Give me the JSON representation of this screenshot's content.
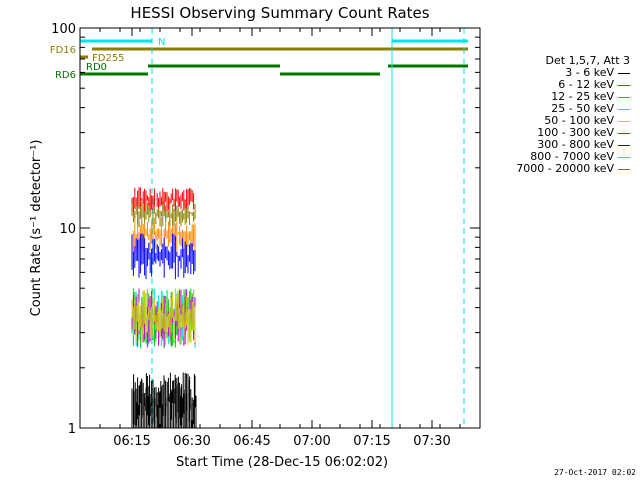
{
  "chart_data": {
    "type": "line",
    "title": "HESSI Observing Summary Count Rates",
    "xlabel": "Start Time (28-Dec-15 06:02:02)",
    "ylabel": "Count Rate (s⁻¹ detector⁻¹)",
    "yscale": "log",
    "xlim": [
      "06:02",
      "07:42"
    ],
    "ylim": [
      1,
      100
    ],
    "x_ticks": [
      "06:15",
      "06:30",
      "06:45",
      "07:00",
      "07:15",
      "07:30"
    ],
    "y_ticks": [
      "1",
      "10",
      "100"
    ],
    "grid": false,
    "legend_position": "right",
    "legend_title": "Det 1,5,7, Att 3",
    "series": [
      {
        "name": "3 - 6 keV",
        "color": "#000000",
        "x_range": [
          "06:15",
          "06:31"
        ],
        "y_range": [
          1,
          1.9
        ]
      },
      {
        "name": "6 - 12 keV",
        "color": "#cc00cc",
        "x_range": [
          "06:15",
          "06:31"
        ],
        "y_range": [
          2.5,
          5
        ]
      },
      {
        "name": "12 - 25 keV",
        "color": "#00cc00",
        "x_range": [
          "06:15",
          "06:31"
        ],
        "y_range": [
          2.5,
          5
        ]
      },
      {
        "name": "25 - 50 keV",
        "color": "#00e5e5",
        "x_range": [
          "06:15",
          "06:31"
        ],
        "y_range": [
          2.5,
          5
        ]
      },
      {
        "name": "50 - 100 keV",
        "color": "#cccc00",
        "x_range": [
          "06:15",
          "06:31"
        ],
        "y_range": [
          2.6,
          5
        ]
      },
      {
        "name": "100 - 300 keV",
        "color": "#ff0000",
        "x_range": [
          "06:15",
          "06:31"
        ],
        "y_range": [
          12,
          16
        ]
      },
      {
        "name": "300 - 800 keV",
        "color": "#0000ff",
        "x_range": [
          "06:15",
          "06:31"
        ],
        "y_range": [
          5.5,
          9.5
        ]
      },
      {
        "name": "800 - 7000 keV",
        "color": "#ff8800",
        "x_range": [
          "06:15",
          "06:31"
        ],
        "y_range": [
          7.5,
          11.5
        ]
      },
      {
        "name": "7000 - 20000 keV",
        "color": "#8b7d00",
        "x_range": [
          "06:15",
          "06:31"
        ],
        "y_range": [
          10,
          14
        ]
      }
    ],
    "annotations": [
      {
        "label": "N",
        "color": "#00e5e5",
        "kind": "night",
        "intervals": [
          [
            "06:02",
            "06:20"
          ],
          [
            "07:20",
            "07:39"
          ]
        ]
      },
      {
        "label": "FD16",
        "color": "#8b7d00",
        "kind": "flag",
        "intervals": [
          [
            "06:05",
            "06:31"
          ],
          [
            "06:31",
            "07:39"
          ]
        ]
      },
      {
        "label": "FD255",
        "color": "#8b7d00",
        "kind": "flag",
        "intervals": [
          [
            "06:02",
            "06:04"
          ]
        ]
      },
      {
        "label": "RD0",
        "color": "#007700",
        "kind": "flag",
        "intervals": [
          [
            "06:19",
            "06:52"
          ],
          [
            "07:19",
            "07:39"
          ]
        ]
      },
      {
        "label": "RD6",
        "color": "#007700",
        "kind": "flag",
        "intervals": [
          [
            "06:02",
            "06:19"
          ],
          [
            "06:52",
            "07:17"
          ]
        ]
      }
    ],
    "vertical_markers": [
      {
        "time": "06:02",
        "style": "solid",
        "color": "#00e5e5"
      },
      {
        "time": "06:20",
        "style": "dashed",
        "color": "#00e5e5"
      },
      {
        "time": "07:20",
        "style": "solid",
        "color": "#00e5e5"
      },
      {
        "time": "07:38",
        "style": "dashed",
        "color": "#00e5e5"
      }
    ]
  },
  "timestamp": "27-Oct-2017 02:02"
}
